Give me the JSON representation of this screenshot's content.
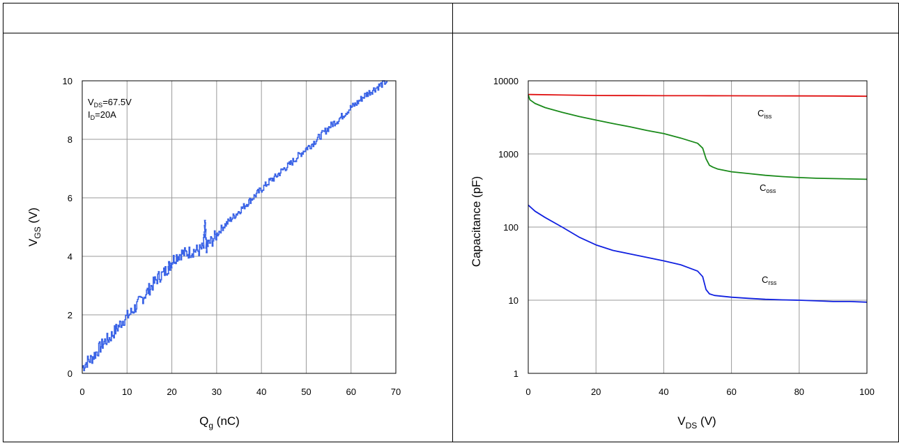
{
  "chart_data": [
    {
      "type": "line",
      "xlabel_main": "Q",
      "xlabel_sub": "g",
      "xlabel_unit": " (nC)",
      "ylabel_main": "V",
      "ylabel_sub": "GS",
      "ylabel_unit": " (V)",
      "xlim": [
        0,
        70
      ],
      "ylim": [
        0,
        10
      ],
      "xticks": [
        0,
        10,
        20,
        30,
        40,
        50,
        60,
        70
      ],
      "yticks": [
        0,
        2,
        4,
        6,
        8,
        10
      ],
      "grid": true,
      "annotation": {
        "line1_main": "V",
        "line1_sub": "DS",
        "line1_rest": "=67.5V",
        "line2_main": "I",
        "line2_sub": "D",
        "line2_rest": "=20A"
      },
      "series": [
        {
          "color": "#3a63e6",
          "x": [
            0,
            1,
            2,
            3,
            4,
            5,
            6,
            7,
            8,
            9,
            10,
            11,
            12,
            13,
            14,
            15,
            16,
            17,
            18,
            19,
            19.5,
            20,
            21,
            22,
            23,
            24,
            25,
            26,
            27,
            27.3,
            27.6,
            28,
            29,
            30,
            31,
            32,
            33,
            34,
            35,
            36,
            37,
            38,
            39,
            40,
            41,
            42,
            43,
            44,
            45,
            46,
            47,
            48,
            49,
            50,
            51,
            52,
            53,
            54,
            55,
            56,
            57,
            58,
            59,
            60,
            61,
            62,
            63,
            64,
            65,
            66,
            67,
            68
          ],
          "y": [
            0.2,
            0.4,
            0.5,
            0.7,
            0.9,
            1.1,
            1.2,
            1.4,
            1.6,
            1.8,
            1.95,
            2.1,
            2.3,
            2.5,
            2.7,
            2.9,
            3.1,
            3.3,
            3.4,
            3.6,
            3.7,
            3.85,
            4.0,
            4.1,
            4.1,
            4.15,
            4.2,
            4.2,
            4.3,
            5.1,
            4.3,
            4.4,
            4.55,
            4.75,
            4.95,
            5.1,
            5.25,
            5.4,
            5.55,
            5.7,
            5.85,
            6.0,
            6.15,
            6.3,
            6.45,
            6.6,
            6.7,
            6.85,
            7.0,
            7.1,
            7.25,
            7.4,
            7.55,
            7.7,
            7.8,
            7.95,
            8.1,
            8.25,
            8.4,
            8.55,
            8.65,
            8.8,
            8.95,
            9.1,
            9.2,
            9.35,
            9.5,
            9.6,
            9.7,
            9.8,
            9.9,
            10.0
          ]
        }
      ]
    },
    {
      "type": "line",
      "ylabel": "Capacitance (pF)",
      "xlabel_main": "V",
      "xlabel_sub": "DS",
      "xlabel_unit": " (V)",
      "xlim": [
        0,
        100
      ],
      "ylim": [
        1,
        10000
      ],
      "yscale": "log",
      "xticks": [
        0,
        20,
        40,
        60,
        80,
        100
      ],
      "yticks": [
        1,
        10,
        100,
        1000,
        10000
      ],
      "ytick_labels": [
        "1",
        "10",
        "100",
        "1000",
        "10000"
      ],
      "grid": true,
      "series": [
        {
          "name_main": "C",
          "name_sub": "iss",
          "color": "#e01010",
          "x": [
            0,
            10,
            20,
            30,
            40,
            50,
            60,
            70,
            80,
            90,
            100
          ],
          "y": [
            6500,
            6400,
            6300,
            6280,
            6260,
            6250,
            6240,
            6230,
            6220,
            6200,
            6150
          ]
        },
        {
          "name_main": "C",
          "name_sub": "oss",
          "color": "#1a8a1a",
          "x": [
            0,
            0.5,
            2,
            5,
            10,
            15,
            20,
            25,
            30,
            35,
            40,
            45,
            50,
            51.5,
            52.5,
            53.5,
            54.5,
            56,
            60,
            65,
            70,
            75,
            80,
            85,
            90,
            95,
            100
          ],
          "y": [
            6400,
            5500,
            4900,
            4300,
            3700,
            3250,
            2900,
            2600,
            2350,
            2100,
            1900,
            1650,
            1400,
            1200,
            860,
            700,
            660,
            620,
            570,
            540,
            510,
            490,
            475,
            465,
            460,
            455,
            450
          ]
        },
        {
          "name_main": "C",
          "name_sub": "rss",
          "color": "#1020e0",
          "x": [
            0,
            2,
            5,
            10,
            15,
            20,
            25,
            30,
            35,
            40,
            45,
            50,
            51.5,
            52.5,
            53.5,
            55,
            60,
            65,
            70,
            75,
            80,
            85,
            90,
            95,
            100
          ],
          "y": [
            200,
            165,
            135,
            100,
            73,
            57,
            48,
            43,
            38.5,
            34.5,
            30.5,
            25,
            21,
            14,
            12.2,
            11.6,
            11.0,
            10.6,
            10.3,
            10.1,
            10.0,
            9.8,
            9.6,
            9.6,
            9.4
          ]
        }
      ]
    }
  ]
}
